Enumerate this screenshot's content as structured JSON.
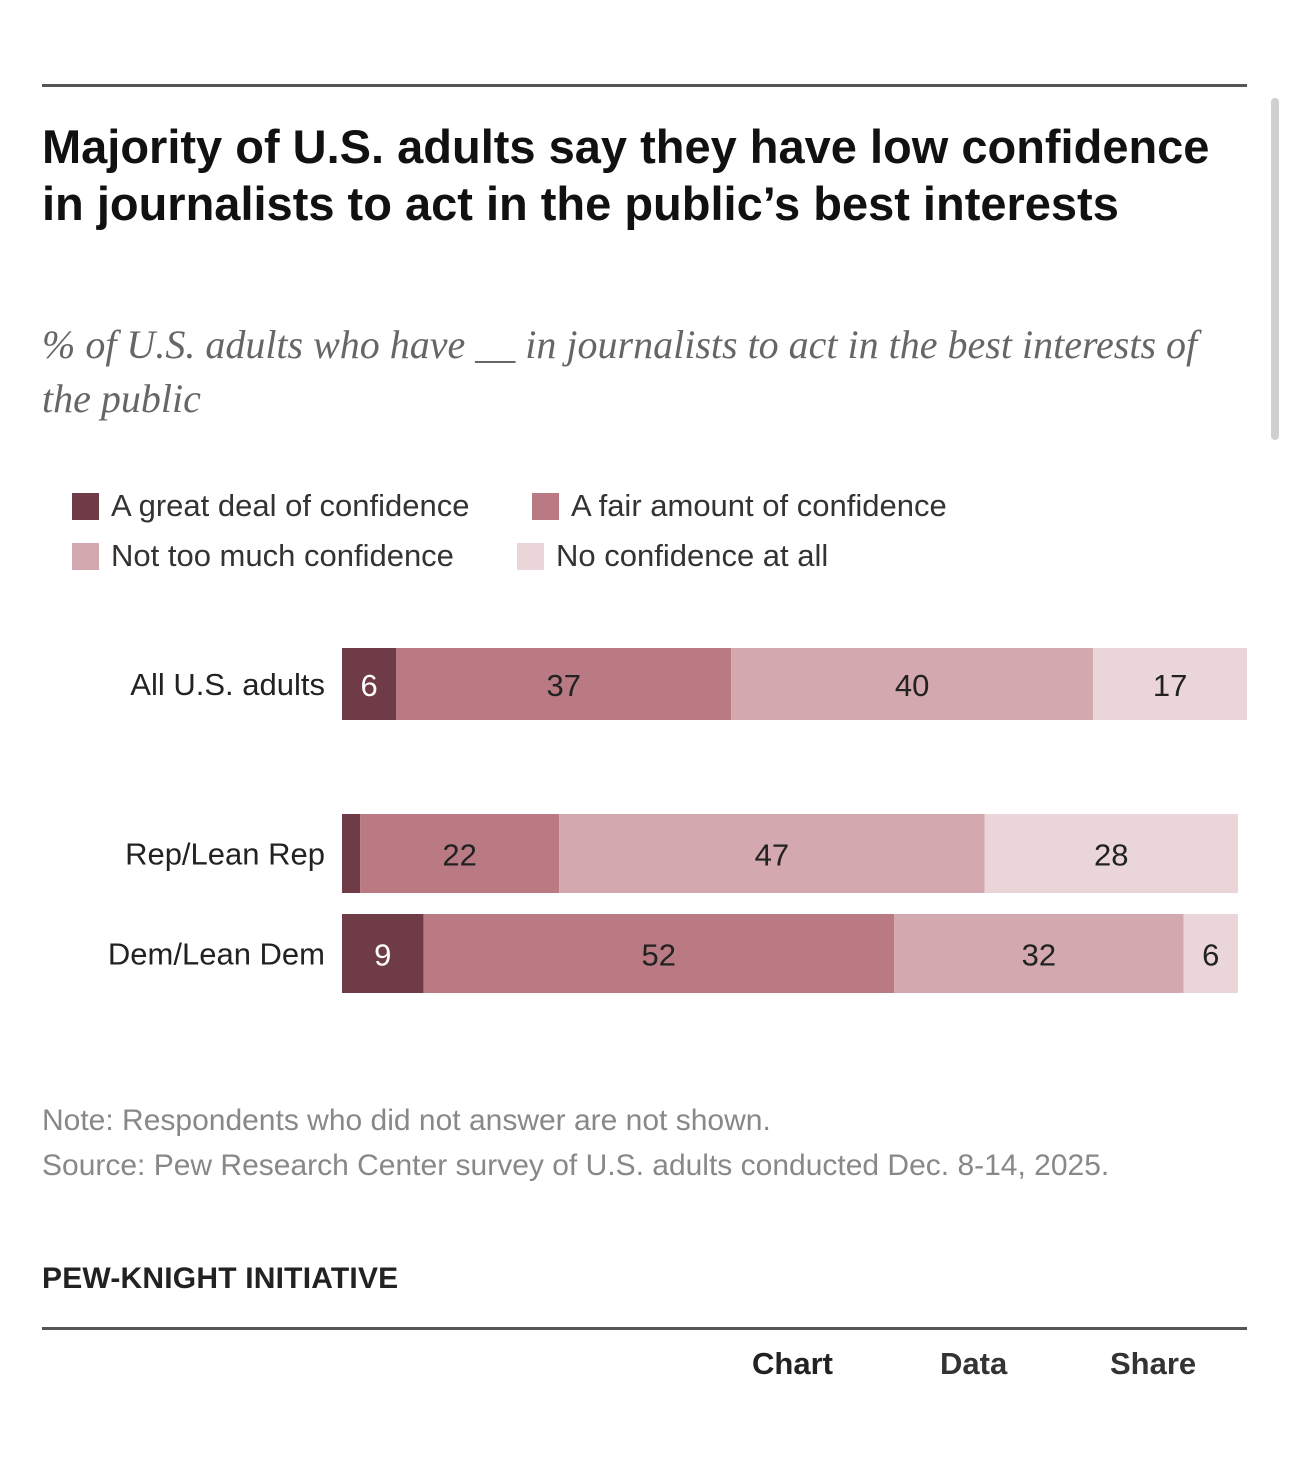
{
  "title": "Majority of U.S. adults say they have low confidence in journalists to act in the public’s best interests",
  "subtitle": "% of U.S. adults who have __ in journalists to act in the best interests of the public",
  "legend": [
    {
      "label": "A great deal of confidence",
      "color": "#6e3b47"
    },
    {
      "label": "A fair amount of confidence",
      "color": "#b97a83"
    },
    {
      "label": "Not too much confidence",
      "color": "#d3a8ae"
    },
    {
      "label": "No confidence at all",
      "color": "#ead5d8"
    }
  ],
  "note": "Note: Respondents who did not answer are not shown.",
  "source": "Source: Pew Research Center survey of U.S. adults conducted Dec. 8-14, 2025.",
  "brand": "PEW-KNIGHT INITIATIVE",
  "tabs": {
    "chart": "Chart",
    "data": "Data",
    "share": "Share"
  },
  "chart_data": {
    "type": "bar",
    "orientation": "horizontal",
    "stacked": true,
    "categories": [
      "All U.S. adults",
      "Rep/Lean Rep",
      "Dem/Lean Dem"
    ],
    "series": [
      {
        "name": "A great deal of confidence",
        "values": [
          6,
          2,
          9
        ],
        "labels": [
          "6",
          "",
          "9"
        ]
      },
      {
        "name": "A fair amount of confidence",
        "values": [
          37,
          22,
          52
        ],
        "labels": [
          "37",
          "22",
          "52"
        ]
      },
      {
        "name": "Not too much confidence",
        "values": [
          40,
          47,
          32
        ],
        "labels": [
          "40",
          "47",
          "32"
        ]
      },
      {
        "name": "No confidence at all",
        "values": [
          17,
          28,
          6
        ],
        "labels": [
          "17",
          "28",
          "6"
        ]
      }
    ],
    "xlim": [
      0,
      100
    ],
    "grid": false,
    "legend_position": "top-left"
  }
}
